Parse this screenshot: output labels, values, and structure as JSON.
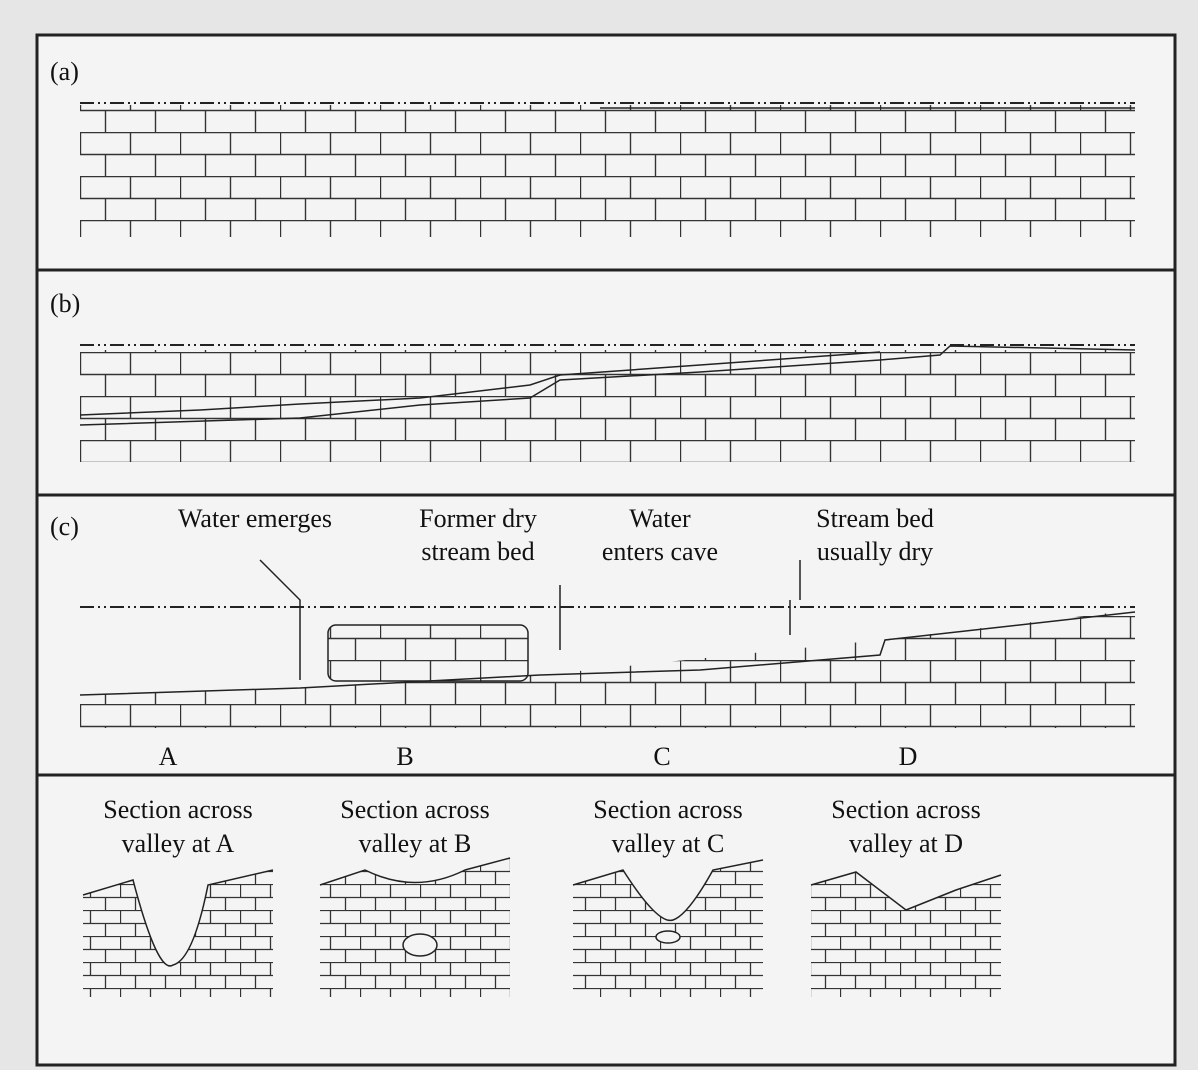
{
  "panels": [
    {
      "label": "(a)"
    },
    {
      "label": "(b)"
    },
    {
      "label": "(c)",
      "annotations": [
        [
          "Water emerges"
        ],
        [
          "Former dry",
          "stream bed"
        ],
        [
          "Water",
          "enters cave"
        ],
        [
          "Stream bed",
          "usually dry"
        ]
      ],
      "points": [
        "A",
        "B",
        "C",
        "D"
      ]
    }
  ],
  "sections": [
    {
      "title": [
        "Section across",
        "valley at A"
      ]
    },
    {
      "title": [
        "Section across",
        "valley at B"
      ]
    },
    {
      "title": [
        "Section across",
        "valley at C"
      ]
    },
    {
      "title": [
        "Section across",
        "valley at D"
      ]
    }
  ]
}
